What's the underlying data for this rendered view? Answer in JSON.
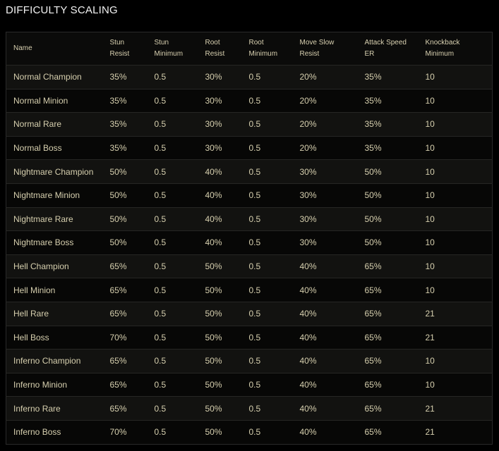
{
  "header": {
    "title": "DIFFICULTY SCALING"
  },
  "table": {
    "columns": [
      [
        "Name"
      ],
      [
        "Stun",
        "Resist"
      ],
      [
        "Stun",
        "Minimum"
      ],
      [
        "Root",
        "Resist"
      ],
      [
        "Root",
        "Minimum"
      ],
      [
        "Move Slow",
        "Resist"
      ],
      [
        "Attack Speed",
        "ER"
      ],
      [
        "Knockback",
        "Minimum"
      ]
    ],
    "rows": [
      [
        "Normal Champion",
        "35%",
        "0.5",
        "30%",
        "0.5",
        "20%",
        "35%",
        "10"
      ],
      [
        "Normal Minion",
        "35%",
        "0.5",
        "30%",
        "0.5",
        "20%",
        "35%",
        "10"
      ],
      [
        "Normal Rare",
        "35%",
        "0.5",
        "30%",
        "0.5",
        "20%",
        "35%",
        "10"
      ],
      [
        "Normal Boss",
        "35%",
        "0.5",
        "30%",
        "0.5",
        "20%",
        "35%",
        "10"
      ],
      [
        "Nightmare Champion",
        "50%",
        "0.5",
        "40%",
        "0.5",
        "30%",
        "50%",
        "10"
      ],
      [
        "Nightmare Minion",
        "50%",
        "0.5",
        "40%",
        "0.5",
        "30%",
        "50%",
        "10"
      ],
      [
        "Nightmare Rare",
        "50%",
        "0.5",
        "40%",
        "0.5",
        "30%",
        "50%",
        "10"
      ],
      [
        "Nightmare Boss",
        "50%",
        "0.5",
        "40%",
        "0.5",
        "30%",
        "50%",
        "10"
      ],
      [
        "Hell Champion",
        "65%",
        "0.5",
        "50%",
        "0.5",
        "40%",
        "65%",
        "10"
      ],
      [
        "Hell Minion",
        "65%",
        "0.5",
        "50%",
        "0.5",
        "40%",
        "65%",
        "10"
      ],
      [
        "Hell Rare",
        "65%",
        "0.5",
        "50%",
        "0.5",
        "40%",
        "65%",
        "21"
      ],
      [
        "Hell Boss",
        "70%",
        "0.5",
        "50%",
        "0.5",
        "40%",
        "65%",
        "21"
      ],
      [
        "Inferno Champion",
        "65%",
        "0.5",
        "50%",
        "0.5",
        "40%",
        "65%",
        "10"
      ],
      [
        "Inferno Minion",
        "65%",
        "0.5",
        "50%",
        "0.5",
        "40%",
        "65%",
        "10"
      ],
      [
        "Inferno Rare",
        "65%",
        "0.5",
        "50%",
        "0.5",
        "40%",
        "65%",
        "21"
      ],
      [
        "Inferno Boss",
        "70%",
        "0.5",
        "50%",
        "0.5",
        "40%",
        "65%",
        "21"
      ]
    ]
  }
}
